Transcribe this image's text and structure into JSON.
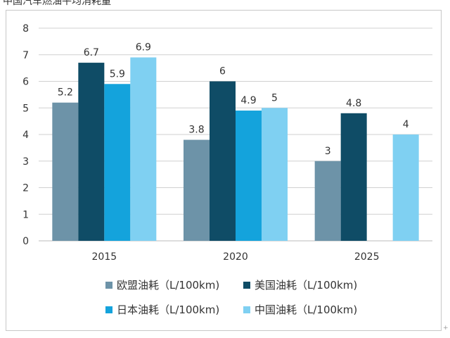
{
  "page": {
    "title_fragment": "中国汽车燃油平均消耗量",
    "corner_mark": "+"
  },
  "chart_data": {
    "type": "bar",
    "categories": [
      "2015",
      "2020",
      "2025"
    ],
    "ylim": [
      0,
      8
    ],
    "yticks": [
      0,
      1,
      2,
      3,
      4,
      5,
      6,
      7,
      8
    ],
    "grid": true,
    "legend_position": "bottom",
    "series": [
      {
        "name": "欧盟油耗（L/100km)",
        "color": "#6d93a8",
        "values": [
          5.2,
          3.8,
          3
        ],
        "labels": [
          "5.2",
          "3.8",
          "3"
        ]
      },
      {
        "name": "美国油耗（L/100km)",
        "color": "#0f4c66",
        "values": [
          6.7,
          6,
          4.8
        ],
        "labels": [
          "6.7",
          "6",
          "4.8"
        ]
      },
      {
        "name": "日本油耗（L/100km)",
        "color": "#14a3dc",
        "values": [
          5.9,
          4.9,
          null
        ],
        "labels": [
          "5.9",
          "4.9",
          null
        ]
      },
      {
        "name": "中国油耗（L/100km)",
        "color": "#7fd0f2",
        "values": [
          6.9,
          5,
          4
        ],
        "labels": [
          "6.9",
          "5",
          "4"
        ]
      }
    ]
  }
}
